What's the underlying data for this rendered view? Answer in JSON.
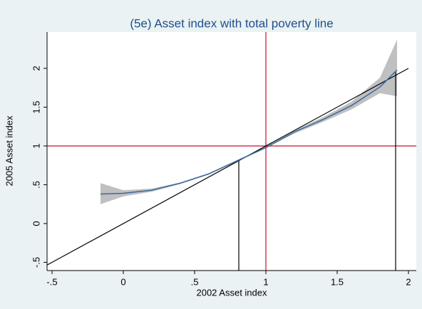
{
  "chart_data": {
    "type": "line",
    "title": "(5e) Asset index with total poverty line",
    "x_label": "2002 Asset index",
    "y_label": "2005 Asset index",
    "xlim": [
      -0.535,
      2.055
    ],
    "ylim": [
      -0.606,
      2.468
    ],
    "xticks": [
      {
        "value": -0.5,
        "label": "-.5"
      },
      0,
      {
        "value": 0.5,
        "label": ".5"
      },
      1,
      1.5,
      2
    ],
    "yticks": [
      {
        "value": -0.5,
        "label": "-.5"
      },
      0,
      {
        "value": 0.5,
        "label": ".5"
      },
      1,
      1.5,
      2
    ],
    "x": [
      -0.16,
      0,
      0.2,
      0.4,
      0.6,
      0.8,
      1.0,
      1.2,
      1.4,
      1.6,
      1.8,
      1.92
    ],
    "series": [
      {
        "color": "#3a6a9e",
        "values": [
          0.38,
          0.39,
          0.43,
          0.52,
          0.64,
          0.81,
          0.98,
          1.18,
          1.34,
          1.52,
          1.76,
          1.98
        ]
      }
    ],
    "band": {
      "color": "#c0c0c0",
      "lower": [
        0.25,
        0.35,
        0.41,
        0.51,
        0.63,
        0.8,
        0.97,
        1.16,
        1.31,
        1.47,
        1.68,
        1.64
      ],
      "upper": [
        0.52,
        0.43,
        0.45,
        0.53,
        0.65,
        0.82,
        0.99,
        1.2,
        1.37,
        1.57,
        1.88,
        2.37
      ]
    },
    "diagonal": {
      "color": "#000000",
      "x": [
        -0.535,
        2
      ],
      "values": [
        -0.535,
        2
      ]
    },
    "reference_lines": {
      "color": "#c8102e",
      "x": 1,
      "y": 1
    },
    "drop_lines": {
      "color": "#000000",
      "x": [
        0.81,
        1.91
      ],
      "values": [
        0.81,
        1.95
      ]
    }
  }
}
